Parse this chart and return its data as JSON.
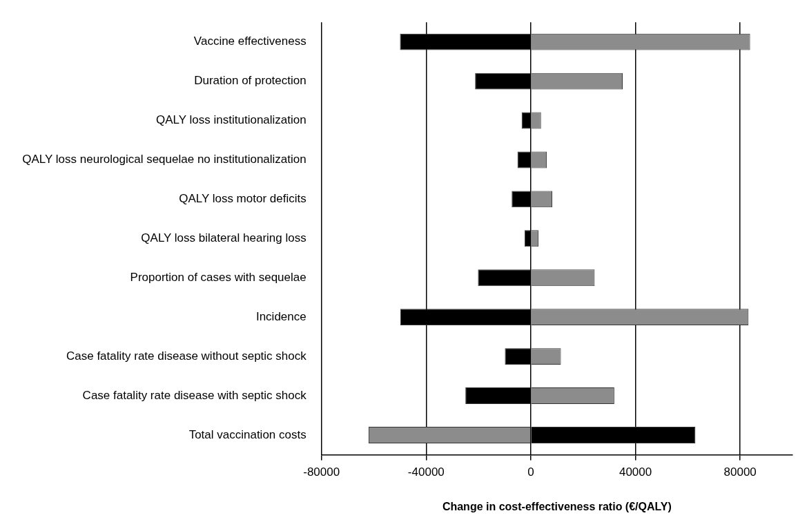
{
  "chart_data": {
    "type": "bar",
    "orientation": "horizontal",
    "stacked": true,
    "xlabel": "Change in cost-effectiveness ratio (€/QALY)",
    "categories": [
      "Vaccine effectiveness",
      "Duration of protection",
      "QALY loss institutionalization",
      "QALY loss neurological sequelae no institutionalization",
      "QALY loss motor deficits",
      "QALY loss bilateral hearing loss",
      "Proportion of cases with sequelae",
      "Incidence",
      "Case fatality rate disease without septic shock",
      "Case fatality rate disease with septic shock",
      "Total vaccination costs"
    ],
    "series": [
      {
        "colors": [
          "#000000",
          "#000000",
          "#000000",
          "#000000",
          "#000000",
          "#000000",
          "#000000",
          "#000000",
          "#000000",
          "#000000",
          "#8c8c8c"
        ],
        "values": [
          -50000,
          -21300,
          -3500,
          -5100,
          -7300,
          -2400,
          -20200,
          -49900,
          -9900,
          -25000,
          -62000
        ]
      },
      {
        "colors": [
          "#8c8c8c",
          "#8c8c8c",
          "#8c8c8c",
          "#8c8c8c",
          "#8c8c8c",
          "#8c8c8c",
          "#8c8c8c",
          "#8c8c8c",
          "#8c8c8c",
          "#8c8c8c",
          "#000000"
        ],
        "values": [
          83800,
          35100,
          3900,
          6100,
          8200,
          2900,
          24400,
          83200,
          11500,
          31900,
          62900
        ]
      }
    ],
    "xlim": [
      -80000,
      100000
    ],
    "xticks": [
      -80000,
      -40000,
      0,
      40000,
      80000
    ],
    "grid": "x",
    "legend": false
  }
}
